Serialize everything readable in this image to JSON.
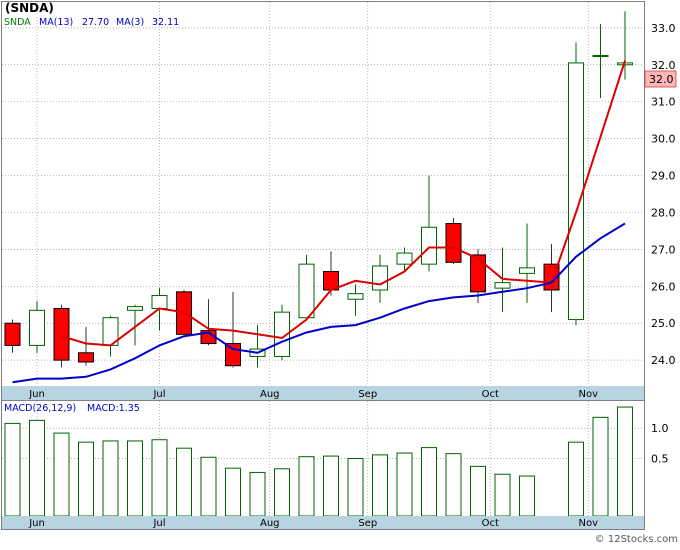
{
  "header": {
    "symbol": "(SNDA)",
    "legend": [
      {
        "label": "SNDA",
        "color": "#008000"
      },
      {
        "label": "MA(13)",
        "color": "#0000cc"
      },
      {
        "label": "27.70",
        "color": "#0000cc"
      },
      {
        "label": "MA(3)",
        "color": "#0000cc"
      },
      {
        "label": "32.11",
        "color": "#0000cc"
      }
    ]
  },
  "macd_header": {
    "label": "MACD(26,12,9)",
    "value_label": "MACD:1.35"
  },
  "last_price_tag": "32.0",
  "watermark": "© 12Stocks.com",
  "colors": {
    "up": "#006400",
    "down_fill": "#ff0000",
    "ma_short": "#dd0000",
    "ma_long": "#0000cc",
    "axis_band": "#b8d4e0",
    "grid": "#999999",
    "macd_bar": "#006400",
    "price_tag_bg": "#ffb6b6"
  },
  "chart_data": [
    {
      "type": "candlestick",
      "ylim": [
        23.3,
        33.7
      ],
      "yticks": [
        {
          "value": 24.0,
          "label": "24.0"
        },
        {
          "value": 25.0,
          "label": "25.0"
        },
        {
          "value": 26.0,
          "label": "26.0"
        },
        {
          "value": 27.0,
          "label": "27.0"
        },
        {
          "value": 28.0,
          "label": "28.0"
        },
        {
          "value": 29.0,
          "label": "29.0"
        },
        {
          "value": 30.0,
          "label": "30.0"
        },
        {
          "value": 31.0,
          "label": "31.0"
        },
        {
          "value": 32.0,
          "label": "32.0"
        },
        {
          "value": 33.0,
          "label": "33.0"
        }
      ],
      "xticks": [
        "Jun",
        "Jul",
        "Aug",
        "Sep",
        "Oct",
        "Nov"
      ],
      "xtick_index": [
        1,
        6,
        10.5,
        14.5,
        19.5,
        23.5
      ],
      "candles": [
        {
          "o": 25.0,
          "h": 25.1,
          "l": 24.2,
          "c": 24.4
        },
        {
          "o": 24.4,
          "h": 25.6,
          "l": 24.2,
          "c": 25.35
        },
        {
          "o": 25.4,
          "h": 25.5,
          "l": 23.8,
          "c": 24.0
        },
        {
          "o": 24.2,
          "h": 24.9,
          "l": 23.85,
          "c": 23.95
        },
        {
          "o": 24.4,
          "h": 25.2,
          "l": 24.1,
          "c": 25.15
        },
        {
          "o": 25.35,
          "h": 25.5,
          "l": 24.4,
          "c": 25.45
        },
        {
          "o": 25.4,
          "h": 25.95,
          "l": 24.8,
          "c": 25.75
        },
        {
          "o": 25.85,
          "h": 25.9,
          "l": 24.7,
          "c": 24.7
        },
        {
          "o": 24.8,
          "h": 25.65,
          "l": 24.4,
          "c": 24.45
        },
        {
          "o": 24.45,
          "h": 25.85,
          "l": 23.8,
          "c": 23.85
        },
        {
          "o": 24.1,
          "h": 24.95,
          "l": 23.8,
          "c": 24.3
        },
        {
          "o": 24.1,
          "h": 25.5,
          "l": 24.0,
          "c": 25.3
        },
        {
          "o": 25.15,
          "h": 26.85,
          "l": 25.1,
          "c": 26.6
        },
        {
          "o": 26.4,
          "h": 26.95,
          "l": 25.75,
          "c": 25.9
        },
        {
          "o": 25.65,
          "h": 26.05,
          "l": 25.2,
          "c": 25.8
        },
        {
          "o": 25.9,
          "h": 26.85,
          "l": 25.55,
          "c": 26.55
        },
        {
          "o": 26.6,
          "h": 27.05,
          "l": 26.4,
          "c": 26.9
        },
        {
          "o": 26.6,
          "h": 29.0,
          "l": 26.4,
          "c": 27.6
        },
        {
          "o": 27.7,
          "h": 27.85,
          "l": 26.6,
          "c": 26.65
        },
        {
          "o": 26.85,
          "h": 27.0,
          "l": 25.55,
          "c": 25.85
        },
        {
          "o": 25.95,
          "h": 27.05,
          "l": 25.3,
          "c": 26.1
        },
        {
          "o": 26.35,
          "h": 27.7,
          "l": 25.55,
          "c": 26.5
        },
        {
          "o": 26.6,
          "h": 27.15,
          "l": 25.3,
          "c": 25.9
        },
        {
          "o": 25.1,
          "h": 32.6,
          "l": 24.95,
          "c": 32.05
        },
        {
          "o": 32.25,
          "h": 33.1,
          "l": 31.1,
          "c": 32.25
        },
        {
          "o": 32.0,
          "h": 33.45,
          "l": 31.6,
          "c": 32.05
        }
      ],
      "ma3": [
        null,
        null,
        24.65,
        24.45,
        24.4,
        24.9,
        25.4,
        25.3,
        24.85,
        24.8,
        24.7,
        24.6,
        25.1,
        25.9,
        26.15,
        26.05,
        26.4,
        27.05,
        27.05,
        26.75,
        26.2,
        26.15,
        26.1,
        28.0,
        30.05,
        32.11
      ],
      "ma13": [
        23.4,
        23.5,
        23.5,
        23.55,
        23.75,
        24.05,
        24.4,
        24.65,
        24.75,
        24.3,
        24.2,
        24.5,
        24.75,
        24.9,
        24.95,
        25.15,
        25.4,
        25.6,
        25.7,
        25.75,
        25.85,
        25.95,
        26.1,
        26.8,
        27.3,
        27.7
      ]
    },
    {
      "type": "bar",
      "title": "MACD(26,12,9)",
      "ylim": [
        -0.45,
        1.45
      ],
      "yticks": [
        {
          "value": 0.5,
          "label": "0.5"
        },
        {
          "value": 1.0,
          "label": "1.0"
        }
      ],
      "xticks": [
        "Jun",
        "Jul",
        "Aug",
        "Sep",
        "Oct",
        "Nov"
      ],
      "values": [
        1.08,
        1.13,
        0.92,
        0.77,
        0.79,
        0.79,
        0.81,
        0.67,
        0.52,
        0.34,
        0.27,
        0.33,
        0.53,
        0.54,
        0.5,
        0.56,
        0.59,
        0.68,
        0.58,
        0.37,
        0.24,
        0.21,
        null,
        0.77,
        1.18,
        1.35
      ]
    }
  ]
}
